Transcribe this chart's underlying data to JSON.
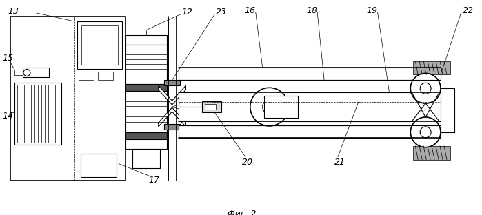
{
  "title": "Фиг. 2",
  "bg_color": "#ffffff",
  "line_color": "#000000",
  "label_color": "#000000",
  "fig_width": 6.99,
  "fig_height": 3.12,
  "dpi": 100
}
